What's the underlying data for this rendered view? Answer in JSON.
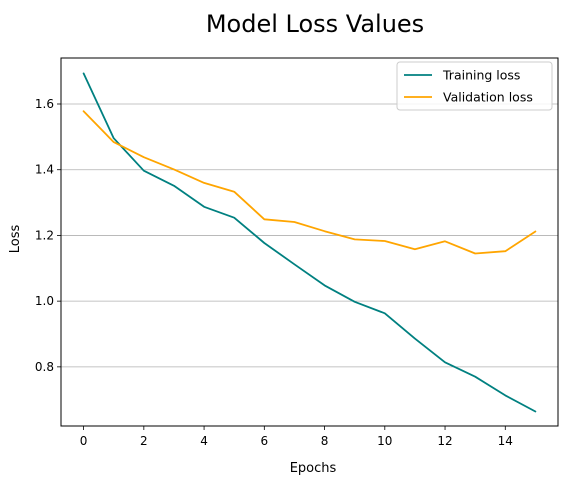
{
  "chart_data": {
    "type": "line",
    "title": "Model Loss Values",
    "xlabel": "Epochs",
    "ylabel": "Loss",
    "xlim": [
      -0.75,
      15.75
    ],
    "ylim": [
      0.62,
      1.74
    ],
    "xticks": [
      0,
      2,
      4,
      6,
      8,
      10,
      12,
      14
    ],
    "yticks": [
      0.8,
      1.0,
      1.2,
      1.4,
      1.6
    ],
    "xtick_labels": [
      "0",
      "2",
      "4",
      "6",
      "8",
      "10",
      "12",
      "14"
    ],
    "ytick_labels": [
      "0.8",
      "1.0",
      "1.2",
      "1.4",
      "1.6"
    ],
    "grid": "horizontal",
    "legend_position": "top-right",
    "x": [
      0,
      1,
      2,
      3,
      4,
      5,
      6,
      7,
      8,
      9,
      10,
      11,
      12,
      13,
      14,
      15
    ],
    "series": [
      {
        "name": "Training loss",
        "color": "#008080",
        "values": [
          1.693,
          1.496,
          1.397,
          1.351,
          1.287,
          1.254,
          1.177,
          1.112,
          1.048,
          0.998,
          0.963,
          0.886,
          0.814,
          0.77,
          0.713,
          0.664
        ]
      },
      {
        "name": "Validation loss",
        "color": "#FFA500",
        "values": [
          1.578,
          1.484,
          1.438,
          1.401,
          1.36,
          1.333,
          1.249,
          1.241,
          1.213,
          1.188,
          1.183,
          1.158,
          1.182,
          1.145,
          1.152,
          1.212
        ]
      }
    ]
  }
}
